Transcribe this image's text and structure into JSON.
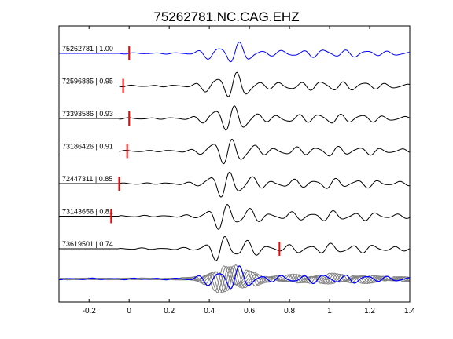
{
  "chart_data": {
    "type": "line",
    "title": "75262781.NC.CAG.EHZ",
    "xlabel": "",
    "ylabel": "",
    "xlim": [
      -0.35,
      1.4
    ],
    "x_ticks": [
      "-0.2",
      "0",
      "0.2",
      "0.4",
      "0.6",
      "0.8",
      "1",
      "1.2",
      "1.4"
    ],
    "x_tick_values": [
      -0.2,
      0,
      0.2,
      0.4,
      0.6,
      0.8,
      1.0,
      1.2,
      1.4
    ],
    "grid": false,
    "series": [
      {
        "id": "75262781",
        "cc": "1.00",
        "label": "75262781 | 1.00",
        "pick_time": 0.0,
        "color": "#0000ff"
      },
      {
        "id": "72596885",
        "cc": "0.95",
        "label": "72596885 | 0.95",
        "pick_time": -0.03,
        "color": "#000000"
      },
      {
        "id": "73393586",
        "cc": "0.93",
        "label": "73393586 | 0.93",
        "pick_time": 0.0,
        "color": "#000000"
      },
      {
        "id": "73186426",
        "cc": "0.91",
        "label": "73186426 | 0.91",
        "pick_time": -0.01,
        "color": "#000000"
      },
      {
        "id": "72447311",
        "cc": "0.85",
        "label": "72447311 | 0.85",
        "pick_time": -0.05,
        "color": "#000000"
      },
      {
        "id": "73143656",
        "cc": "0.81",
        "label": "73143656 | 0.81",
        "pick_time": -0.09,
        "color": "#000000"
      },
      {
        "id": "73619501",
        "cc": "0.74",
        "label": "73619501 | 0.74",
        "pick_time": 0.75,
        "color": "#000000"
      }
    ],
    "stack": {
      "overlay_color": "#808080",
      "reference_color": "#0000ff"
    },
    "pick_color": "#ff0000"
  }
}
